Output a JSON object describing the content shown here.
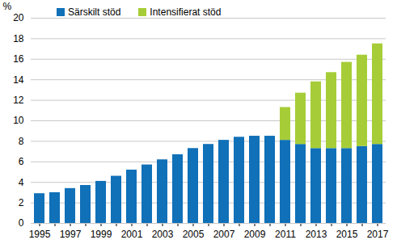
{
  "chart_data": {
    "type": "bar",
    "stacked": true,
    "y_label": "%",
    "categories": [
      "1995",
      null,
      "1997",
      null,
      "1999",
      null,
      "2001",
      null,
      "2003",
      null,
      "2005",
      null,
      "2007",
      null,
      "2009",
      null,
      "2011",
      null,
      "2013",
      null,
      "2015",
      null,
      "2017"
    ],
    "series": [
      {
        "name": "Särskilt stöd",
        "color": "#1070b8",
        "values": [
          2.9,
          3.0,
          3.4,
          3.7,
          4.1,
          4.6,
          5.2,
          5.7,
          6.2,
          6.7,
          7.3,
          7.7,
          8.1,
          8.4,
          8.5,
          8.5,
          8.1,
          7.7,
          7.3,
          7.3,
          7.3,
          7.5,
          7.7
        ]
      },
      {
        "name": "Intensifierat stöd",
        "color": "#a6cd37",
        "values": [
          null,
          null,
          null,
          null,
          null,
          null,
          null,
          null,
          null,
          null,
          null,
          null,
          null,
          null,
          null,
          null,
          3.2,
          5.0,
          6.5,
          7.4,
          8.4,
          8.9,
          9.8
        ]
      }
    ],
    "ylim": [
      0,
      20
    ],
    "yticks": [
      0,
      2,
      4,
      6,
      8,
      10,
      12,
      14,
      16,
      18,
      20
    ],
    "grid": true,
    "legend": "top-left"
  }
}
